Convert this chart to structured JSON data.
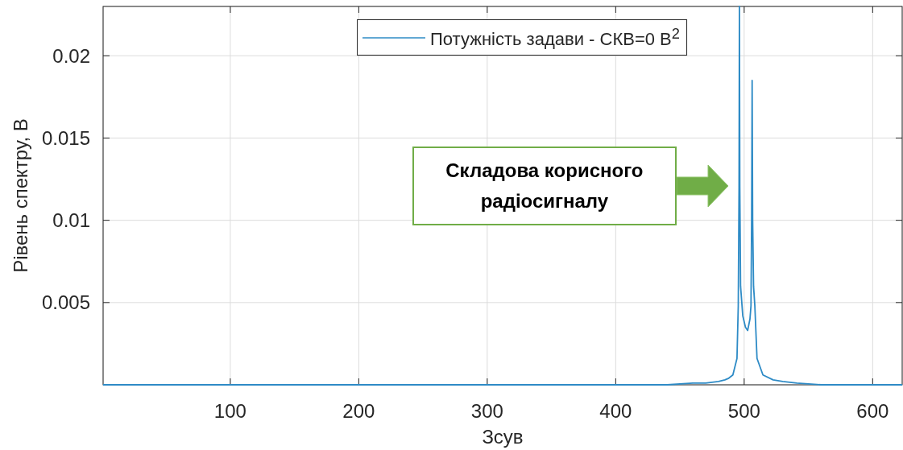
{
  "chart_data": {
    "type": "line",
    "xlabel": "Зсув",
    "ylabel": "Рівень спектру, В",
    "x": [
      1,
      100,
      200,
      300,
      400,
      440,
      460,
      470,
      480,
      485,
      488,
      491.2,
      494.4,
      495.4,
      496,
      496.3,
      496.6,
      497.2,
      498.9,
      501,
      502.7,
      504.5,
      505.3,
      505.8,
      506.2,
      506.6,
      507.3,
      508.3,
      510,
      514.6,
      522.5,
      530,
      541,
      560,
      600,
      623
    ],
    "series": [
      {
        "name": "Потужність задави - СКВ=0 В$^{2}$",
        "color": "#2e8bc6",
        "values": [
          0,
          0,
          0,
          0,
          0,
          0,
          0.0001,
          0.0001,
          0.0002,
          0.0003,
          0.0004,
          0.0006,
          0.0016,
          0.0048,
          0.012,
          0.023,
          0.012,
          0.006,
          0.0042,
          0.0035,
          0.0033,
          0.004,
          0.0048,
          0.01,
          0.0185,
          0.01,
          0.006,
          0.0048,
          0.0016,
          0.0006,
          0.0003,
          0.0002,
          0.0001,
          0,
          0,
          0
        ]
      }
    ],
    "xlim": [
      1,
      623
    ],
    "ylim": [
      0,
      0.023
    ],
    "xticks": [
      100,
      200,
      300,
      400,
      500,
      600
    ],
    "yticks": [
      0.005,
      0.01,
      0.015,
      0.02
    ],
    "grid": true,
    "legend": "top",
    "marker": "none",
    "line_style": "solid",
    "annotations": [
      "Складова корисного радіосигналу"
    ]
  }
}
